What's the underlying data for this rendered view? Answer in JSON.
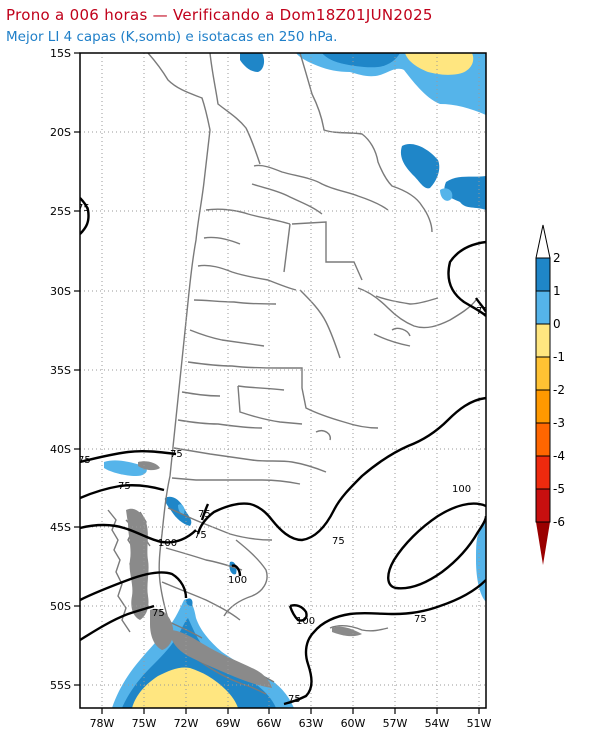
{
  "title_line1": "Prono a 006 horas — Verificando a Dom18Z01JUN2025",
  "title_line2": "Mejor LI 4 capas (K,somb) e isotacas en 250 hPa.",
  "lat_labels": [
    "15S",
    "20S",
    "25S",
    "30S",
    "35S",
    "40S",
    "45S",
    "50S",
    "55S"
  ],
  "lon_labels": [
    "78W",
    "75W",
    "72W",
    "69W",
    "66W",
    "63W",
    "60W",
    "57W",
    "54W",
    "51W"
  ],
  "isotach_labels": [
    "75",
    "75",
    "75",
    "75",
    "75",
    "75",
    "75",
    "75",
    "75",
    "75",
    "75",
    "100",
    "100",
    "100",
    "100"
  ],
  "colorbar": {
    "ticks": [
      "2",
      "1",
      "0",
      "-1",
      "-2",
      "-3",
      "-4",
      "-5",
      "-6"
    ],
    "colors": [
      "#1f86c8",
      "#55b4ea",
      "#ffe680",
      "#ffc233",
      "#ff9900",
      "#ff6600",
      "#ee2a0e",
      "#c80f0f",
      "#9a0000"
    ]
  },
  "colors": {
    "shade_dark_blue": "#1f86c8",
    "shade_light_blue": "#55b4ea",
    "shade_yellow": "#ffe680",
    "title_red": "#c0001a",
    "title_blue": "#1f7fc8"
  }
}
